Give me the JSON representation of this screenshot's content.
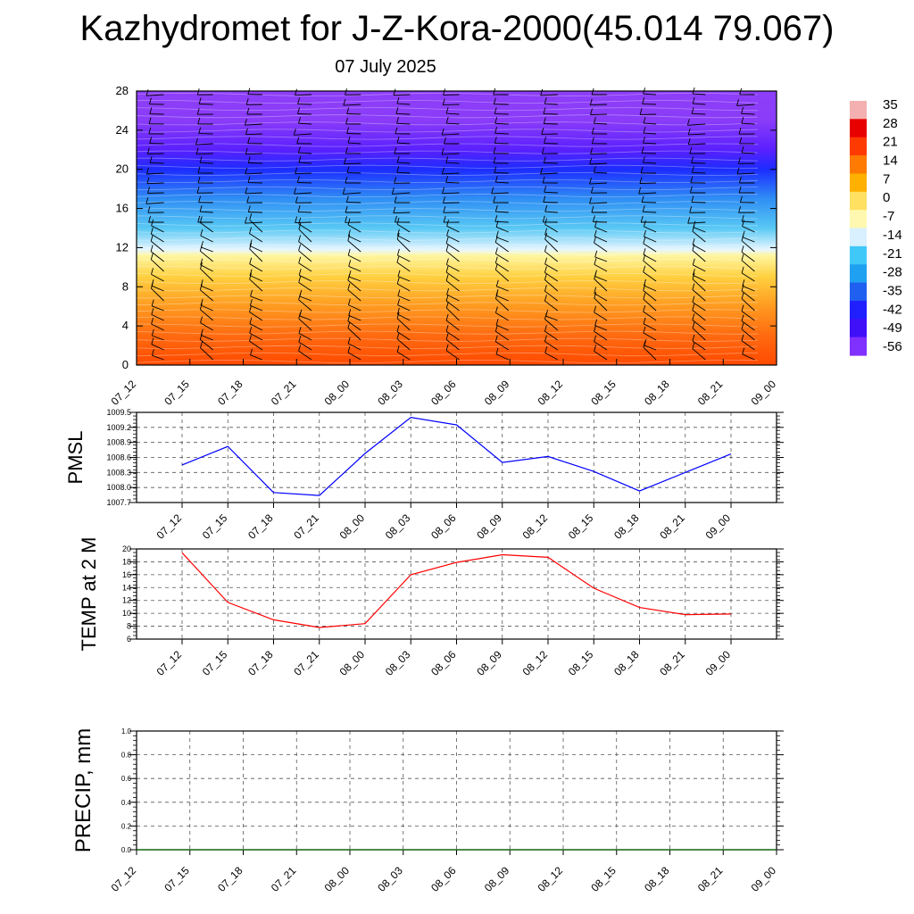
{
  "header": {
    "title": "Kazhydromet for J-Z-Kora-2000(45.014 79.067)",
    "date": "07 July 2025"
  },
  "chart_data": [
    {
      "type": "heatmap",
      "name": "temperature-height-section",
      "x_labels": [
        "07_12",
        "07_15",
        "07_18",
        "07_21",
        "08_00",
        "08_03",
        "08_06",
        "08_09",
        "08_12",
        "08_15",
        "08_18",
        "08_21",
        "09_00"
      ],
      "y_ticks": [
        0,
        4,
        8,
        12,
        16,
        20,
        24,
        28
      ],
      "ylim": [
        0,
        28
      ],
      "colorbar": {
        "labels": [
          "35",
          "28",
          "21",
          "14",
          "7",
          "0",
          "-7",
          "-14",
          "-21",
          "-28",
          "-35",
          "-42",
          "-49",
          "-56"
        ],
        "stops": [
          "#f4b0b0",
          "#e80000",
          "#ff3a00",
          "#ff7a00",
          "#ffb000",
          "#ffe060",
          "#fff8b0",
          "#d8f0ff",
          "#40c8f8",
          "#20a0f0",
          "#2060f0",
          "#2020ff",
          "#4010f8",
          "#8030ff"
        ]
      },
      "profile": [
        {
          "h": 0,
          "color": "#ff4a00"
        },
        {
          "h": 3,
          "color": "#ff6a10"
        },
        {
          "h": 6,
          "color": "#ff9a20"
        },
        {
          "h": 9,
          "color": "#ffd040"
        },
        {
          "h": 11.2,
          "color": "#fff6a0"
        },
        {
          "h": 11.8,
          "color": "#e6f6ff"
        },
        {
          "h": 14,
          "color": "#58c8f4"
        },
        {
          "h": 17,
          "color": "#2f8ef4"
        },
        {
          "h": 20,
          "color": "#1c2cff"
        },
        {
          "h": 22,
          "color": "#5a20ff"
        },
        {
          "h": 25,
          "color": "#8a3cf8"
        },
        {
          "h": 28,
          "color": "#8d3ef8"
        }
      ]
    },
    {
      "type": "line",
      "name": "pmsl",
      "ylabel": "PMSL",
      "x": [
        "07_12",
        "07_15",
        "07_18",
        "07_21",
        "08_00",
        "08_03",
        "08_06",
        "08_09",
        "08_12",
        "08_15",
        "08_18",
        "08_21",
        "09_00"
      ],
      "y_ticks": [
        "1009.5",
        "1009.2",
        "1008.9",
        "1008.6",
        "1008.3",
        "1008.0",
        "1007.7"
      ],
      "ylim": [
        1007.7,
        1009.5
      ],
      "values": [
        1008.45,
        1008.82,
        1007.9,
        1007.84,
        1008.68,
        1009.4,
        1009.25,
        1008.5,
        1008.62,
        1008.32,
        1007.93,
        1008.3,
        1008.67
      ],
      "color": "#0000ff"
    },
    {
      "type": "line",
      "name": "temp2m",
      "ylabel": "TEMP at 2 M",
      "x": [
        "07_12",
        "07_15",
        "07_18",
        "07_21",
        "08_00",
        "08_03",
        "08_06",
        "08_09",
        "08_12",
        "08_15",
        "08_18",
        "08_21",
        "09_00"
      ],
      "y_ticks": [
        "20",
        "18",
        "16",
        "14",
        "12",
        "10",
        "8",
        "6"
      ],
      "ylim": [
        6,
        20
      ],
      "values": [
        19.4,
        11.7,
        9.0,
        7.8,
        8.4,
        16.0,
        17.9,
        19.1,
        18.7,
        13.9,
        10.9,
        9.8,
        9.9
      ],
      "color": "#ff0000"
    },
    {
      "type": "line",
      "name": "precip",
      "ylabel": "PRECIP, mm",
      "x_labels": [
        "07_12",
        "07_15",
        "07_18",
        "07_21",
        "08_00",
        "08_03",
        "08_06",
        "08_09",
        "08_12",
        "08_15",
        "08_18",
        "08_21",
        "09_00"
      ],
      "y_ticks": [
        "1.0",
        "0.8",
        "0.6",
        "0.4",
        "0.2",
        "0.0"
      ],
      "ylim": [
        0,
        1
      ],
      "values": [
        0,
        0,
        0,
        0,
        0,
        0,
        0,
        0,
        0,
        0,
        0,
        0,
        0
      ],
      "color": "#006400"
    }
  ]
}
